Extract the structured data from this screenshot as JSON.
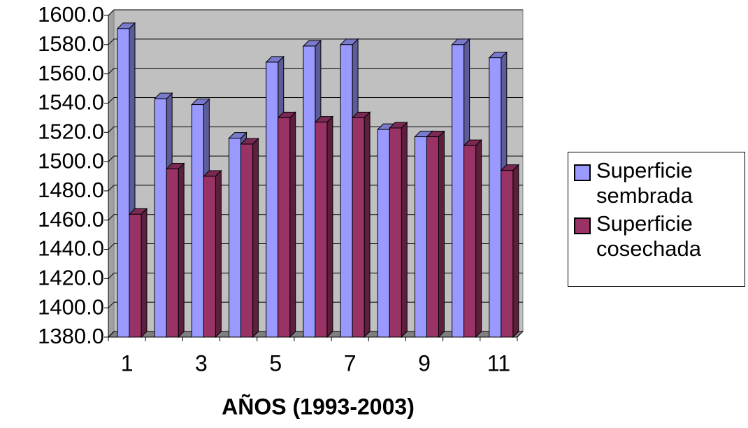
{
  "chart_data": {
    "type": "bar3d",
    "x_label": "AÑOS (1993-2003)",
    "categories": [
      "1",
      null,
      "3",
      null,
      "5",
      null,
      "7",
      null,
      "9",
      null,
      "11"
    ],
    "series": [
      {
        "name": "Superficie sembrada",
        "color": "#9999ff",
        "values": [
          1591,
          1543,
          1539,
          1516,
          1568,
          1579,
          1580,
          1522,
          1517,
          1580,
          1571
        ]
      },
      {
        "name": "Superficie cosechada",
        "color": "#993366",
        "values": [
          1464,
          1495,
          1490,
          1512,
          1530,
          1527,
          1530,
          1523,
          1517,
          1511,
          1494
        ]
      }
    ],
    "ylim": [
      1380,
      1600
    ],
    "yticks": [
      {
        "value": 1380,
        "label": "1380.0"
      },
      {
        "value": 1400,
        "label": "1400.0"
      },
      {
        "value": 1420,
        "label": "1420.0"
      },
      {
        "value": 1440,
        "label": "1440.0"
      },
      {
        "value": 1460,
        "label": "1460.0"
      },
      {
        "value": 1480,
        "label": "1480.0"
      },
      {
        "value": 1500,
        "label": "1500.0"
      },
      {
        "value": 1520,
        "label": "1520.0"
      },
      {
        "value": 1540,
        "label": "1540.0"
      },
      {
        "value": 1560,
        "label": "1560.0"
      },
      {
        "value": 1580,
        "label": "1580.0"
      },
      {
        "value": 1600,
        "label": "1600.0"
      }
    ],
    "grid": true
  }
}
